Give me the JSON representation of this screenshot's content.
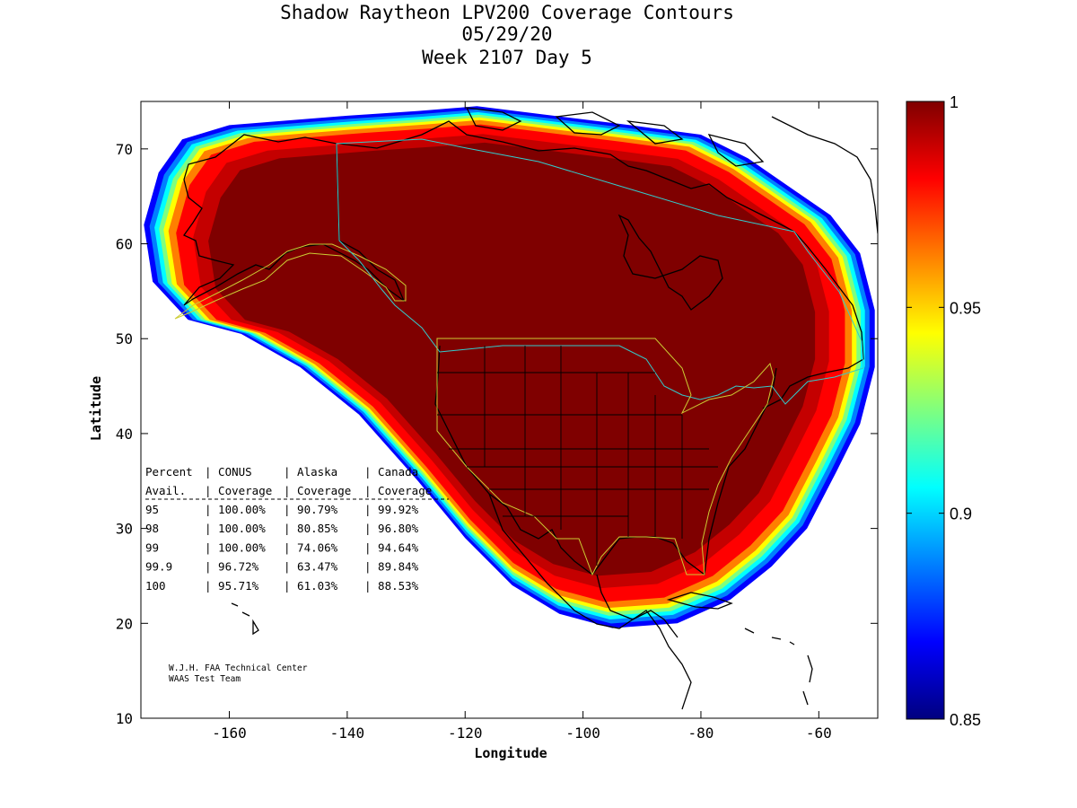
{
  "chart_data": {
    "type": "heatmap",
    "title": [
      "Shadow Raytheon LPV200 Coverage Contours",
      "05/29/20",
      "Week 2107 Day 5"
    ],
    "xlabel": "Longitude",
    "ylabel": "Latitude",
    "xlim": [
      -175,
      -50
    ],
    "ylim": [
      10,
      75
    ],
    "x_ticks": [
      -160,
      -140,
      -120,
      -100,
      -80,
      -60
    ],
    "y_ticks": [
      10,
      20,
      30,
      40,
      50,
      60,
      70
    ],
    "x_tick_labels": [
      "-160",
      "-140",
      "-120",
      "-100",
      "-80",
      "-60"
    ],
    "y_tick_labels": [
      "10",
      "20",
      "30",
      "40",
      "50",
      "60",
      "70"
    ],
    "colorbar": {
      "min": 0.85,
      "max": 1,
      "ticks": [
        0.85,
        0.9,
        0.95,
        1
      ],
      "tick_labels": [
        "0.85",
        "0.9",
        "0.95",
        "1"
      ],
      "colormap": [
        "#00007f",
        "#0000ff",
        "#007fff",
        "#00ffff",
        "#7fff7f",
        "#ffff00",
        "#ff7f00",
        "#ff0000",
        "#7f0000"
      ]
    },
    "coverage_outline_lonlat": [
      [
        -168,
        71
      ],
      [
        -160,
        72.5
      ],
      [
        -150,
        73
      ],
      [
        -140,
        73.5
      ],
      [
        -128,
        74
      ],
      [
        -118,
        74.5
      ],
      [
        -105,
        73.5
      ],
      [
        -92,
        72.5
      ],
      [
        -80,
        71.5
      ],
      [
        -72,
        69
      ],
      [
        -65,
        66
      ],
      [
        -58,
        63
      ],
      [
        -53,
        59
      ],
      [
        -50.5,
        53
      ],
      [
        -50.5,
        47
      ],
      [
        -53,
        41
      ],
      [
        -57,
        36
      ],
      [
        -62,
        30
      ],
      [
        -68,
        26
      ],
      [
        -75,
        22.5
      ],
      [
        -84,
        20
      ],
      [
        -95,
        19.5
      ],
      [
        -104,
        21
      ],
      [
        -112,
        24
      ],
      [
        -120,
        29
      ],
      [
        -128,
        35
      ],
      [
        -138,
        42
      ],
      [
        -148,
        47
      ],
      [
        -158,
        50.5
      ],
      [
        -167,
        52
      ],
      [
        -173,
        56
      ],
      [
        -174.5,
        62
      ],
      [
        -172,
        67.5
      ],
      [
        -168,
        71
      ]
    ],
    "table": {
      "headers": [
        [
          "Percent",
          "CONUS",
          "Alaska",
          "Canada"
        ],
        [
          "Avail.",
          "Coverage",
          "Coverage",
          "Coverage"
        ]
      ],
      "rows": [
        [
          "95",
          "100.00%",
          "90.79%",
          "99.92%"
        ],
        [
          "98",
          "100.00%",
          "80.85%",
          "96.80%"
        ],
        [
          "99",
          "100.00%",
          "74.06%",
          "94.64%"
        ],
        [
          "99.9",
          "96.72%",
          "63.47%",
          "89.84%"
        ],
        [
          "100",
          "95.71%",
          "61.03%",
          "88.53%"
        ]
      ]
    },
    "credits": [
      "W.J.H. FAA Technical Center",
      "WAAS Test Team"
    ]
  }
}
